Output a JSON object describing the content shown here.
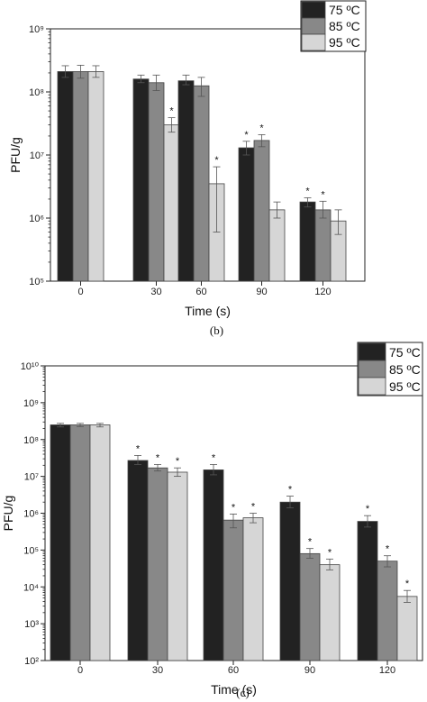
{
  "chart_data": [
    {
      "type": "bar",
      "caption": "(b)",
      "xlabel": "Time (s)",
      "ylabel": "PFU/g",
      "y_scale": "log",
      "ylim": [
        100000,
        1000000000
      ],
      "y_tick_labels": [
        "10⁵",
        "10⁶",
        "10⁷",
        "10⁸",
        "10⁹"
      ],
      "categories": [
        "0",
        "30",
        "60",
        "90",
        "120"
      ],
      "legend_position": "top-right",
      "series": [
        {
          "name": "75 ºC",
          "color": "#222222",
          "values": [
            210000000,
            160000000,
            150000000,
            13000000,
            1800000
          ],
          "error_low": [
            170000000,
            140000000,
            130000000,
            10000000,
            1500000
          ],
          "error_high": [
            260000000,
            185000000,
            185000000,
            16500000,
            2100000
          ],
          "significant": [
            false,
            false,
            false,
            true,
            true
          ]
        },
        {
          "name": "85 ºC",
          "color": "#888888",
          "values": [
            210000000,
            140000000,
            125000000,
            17000000,
            1350000
          ],
          "error_low": [
            165000000,
            105000000,
            85000000,
            13500000,
            1000000
          ],
          "error_high": [
            265000000,
            185000000,
            170000000,
            21000000,
            1850000
          ],
          "significant": [
            false,
            false,
            false,
            true,
            true
          ]
        },
        {
          "name": "95 ºC",
          "color": "#d6d6d6",
          "values": [
            210000000,
            30000000,
            3500000,
            1350000,
            900000
          ],
          "error_low": [
            170000000,
            23000000,
            600000,
            1000000,
            550000
          ],
          "error_high": [
            260000000,
            39000000,
            6500000,
            1800000,
            1350000
          ],
          "significant": [
            false,
            true,
            true,
            false,
            false
          ]
        }
      ]
    },
    {
      "type": "bar",
      "caption": "(c)",
      "xlabel": "Time (s)",
      "ylabel": "PFU/g",
      "y_scale": "log",
      "ylim": [
        100,
        10000000000
      ],
      "y_tick_labels": [
        "10²",
        "10³",
        "10⁴",
        "10⁵",
        "10⁶",
        "10⁷",
        "10⁸",
        "10⁹",
        "10¹⁰"
      ],
      "categories": [
        "0",
        "30",
        "60",
        "90",
        "120"
      ],
      "legend_position": "top-right",
      "series": [
        {
          "name": "75 ºC",
          "color": "#222222",
          "values": [
            250000000,
            27000000,
            15000000,
            2000000,
            600000
          ],
          "error_low": [
            220000000,
            21000000,
            11000000,
            1400000,
            420000
          ],
          "error_high": [
            275000000,
            37000000,
            21000000,
            2900000,
            860000
          ],
          "significant": [
            false,
            true,
            true,
            true,
            true
          ]
        },
        {
          "name": "85 ºC",
          "color": "#888888",
          "values": [
            250000000,
            17000000,
            650000,
            80000,
            50000
          ],
          "error_low": [
            225000000,
            14000000,
            400000,
            60000,
            35000
          ],
          "error_high": [
            275000000,
            21000000,
            950000,
            110000,
            70000
          ],
          "significant": [
            false,
            true,
            true,
            true,
            true
          ]
        },
        {
          "name": "95 ºC",
          "color": "#d6d6d6",
          "values": [
            250000000,
            13000000,
            750000,
            40000,
            5500
          ],
          "error_low": [
            220000000,
            10000000,
            550000,
            29000,
            3800
          ],
          "error_high": [
            275000000,
            17000000,
            1000000,
            57000,
            8000
          ],
          "significant": [
            false,
            true,
            true,
            true,
            true
          ]
        }
      ]
    }
  ]
}
